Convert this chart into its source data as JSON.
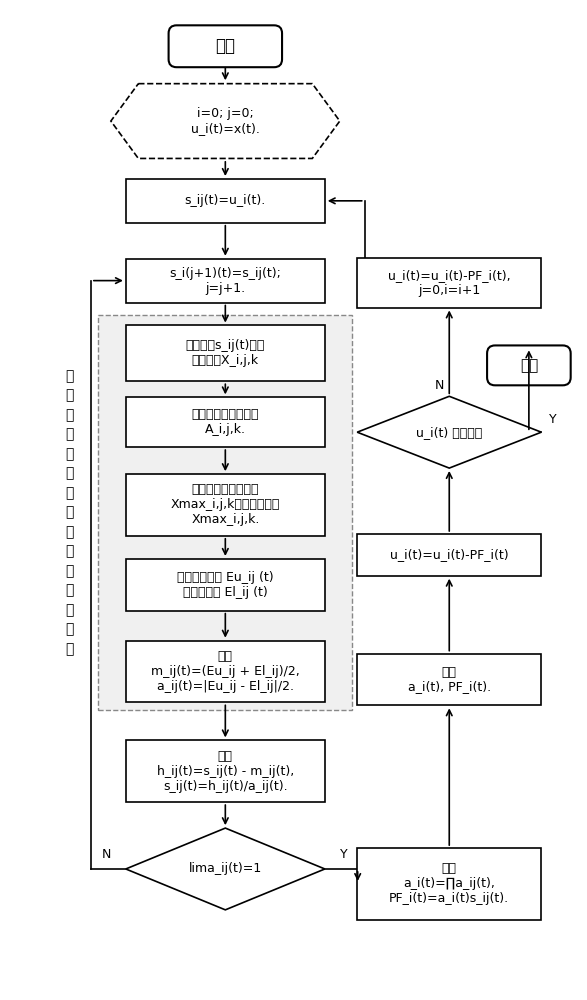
{
  "bg_color": "#ffffff",
  "nodes": {
    "start_label": "开始",
    "init_label": "i=0; j=0;\nu_i(t)=x(t).",
    "sij_label": "s_ij(t)=u_i(t).",
    "sij2_label": "s_i(j+1)(t)=s_ij(t);\nj=j+1.",
    "calc1_label": "计算信号s_ij(t)的极\n值点序列X_i,j,k",
    "calc2_label": "计算极值对称点序列\nA_i,j,k.",
    "calc3_label": "形成新的极大值序列\nXmax_i,j,k和极小值序列\nXmax_i,j,k.",
    "calc4_label": "计算上包络线 Eu_ij (t)\n和下包络线 El_ij (t)",
    "calc5_label": "计算\nm_ij(t)=(Eu_ij + El_ij)/2,\na_ij(t)=|Eu_ij - El_ij|/2.",
    "calc6_label": "计算\nh_ij(t)=s_ij(t) - m_ij(t),\ns_ij(t)=h_ij(t)/a_ij(t).",
    "diamond1_label": "lima_ij(t)=1",
    "calc7_label": "计算\na_i(t)=∏a_ij(t),\nPF_i(t)=a_i(t)s_ij(t).",
    "save_label": "保存\na_i(t), PF_i(t).",
    "ui_sub_label": "u_i(t)=u_i(t)-PF_i(t)",
    "diamond2_label": "u_i(t) 是否单调",
    "update_label": "u_i(t)=u_i(t)-PF_i(t),\nj=0,i=i+1",
    "end_label": "结束"
  },
  "side_label": "局\n部\n均\n值\n函\n数\n与\n包\n络\n估\n计\n函\n数\n构\n造",
  "font_size": 9,
  "font_size_small": 9
}
